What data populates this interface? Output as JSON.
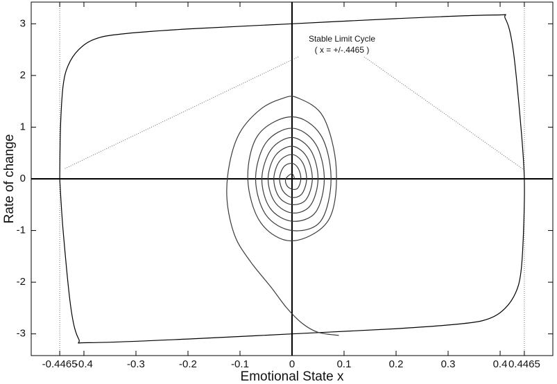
{
  "chart_data": {
    "type": "line",
    "xlabel": "Emotional State x",
    "ylabel": "Rate of change",
    "annotation": [
      "Stable Limit Cycle",
      "( x = +/-.4465 )"
    ],
    "xlim": [
      -0.5013,
      0.5013
    ],
    "ylim": [
      -3.42,
      3.42
    ],
    "xticks": [
      -0.4465,
      -0.4,
      -0.3,
      -0.2,
      -0.1,
      0,
      0.1,
      0.2,
      0.3,
      0.4,
      0.4465
    ],
    "yticks": [
      -3,
      -2,
      -1,
      0,
      1,
      2,
      3
    ],
    "reference_lines_x": [
      -0.4465,
      0.4465
    ],
    "zero_axes": true,
    "series": [
      {
        "color": "#000000",
        "x": [
          -0.4465,
          -0.445,
          -0.44,
          -0.43,
          -0.41,
          -0.38,
          -0.33,
          -0.2,
          0,
          0.2,
          0.39,
          0.41,
          0.425,
          0.44,
          0.4465,
          0.445,
          0.44,
          0.43,
          0.41,
          0.38,
          0.33,
          0.2,
          0,
          -0.2,
          -0.39,
          -0.41,
          -0.425,
          -0.44,
          -0.4465
        ],
        "y": [
          0,
          1.0,
          1.8,
          2.2,
          2.5,
          2.7,
          2.8,
          2.9,
          3.0,
          3.1,
          3.17,
          3.1,
          2.5,
          1.0,
          0,
          -1.0,
          -1.8,
          -2.2,
          -2.5,
          -2.7,
          -2.8,
          -2.9,
          -3.0,
          -3.1,
          -3.17,
          -3.1,
          -2.5,
          -1.0,
          0
        ]
      },
      {
        "color": "#3a3a3a",
        "x": [
          0.09,
          0.05,
          0.02,
          -0.01,
          -0.04,
          -0.08,
          -0.11,
          -0.125,
          -0.12,
          -0.1,
          -0.06,
          -0.02,
          0.01,
          0.06,
          0.085,
          0.07,
          0.0,
          -0.06,
          -0.085,
          -0.065,
          0.0,
          0.055,
          0.075,
          0.055,
          0,
          -0.05,
          -0.07,
          -0.05,
          0,
          0.045,
          0.062,
          0.045,
          0,
          -0.042,
          -0.058,
          -0.04,
          0,
          0.036,
          0.05,
          0.035,
          0,
          -0.033,
          -0.046,
          -0.032,
          0,
          0.028,
          0.039,
          0.027,
          0,
          -0.025,
          -0.035,
          -0.024,
          0,
          0.02,
          0.028,
          0.019,
          0,
          -0.017,
          -0.024,
          -0.016,
          0,
          0.012,
          0.017,
          0.011,
          0,
          -0.01,
          -0.012,
          0,
          0.005
        ],
        "y": [
          -3.03,
          -2.97,
          -2.8,
          -2.5,
          -2.1,
          -1.6,
          -1.1,
          -0.4,
          0.3,
          0.9,
          1.35,
          1.55,
          1.57,
          1.2,
          0.2,
          -0.8,
          -1.2,
          -0.85,
          0,
          0.85,
          1.2,
          0.85,
          0,
          -0.82,
          -1.0,
          -0.7,
          0,
          0.7,
          0.98,
          0.68,
          0,
          -0.65,
          -0.82,
          -0.57,
          0,
          0.57,
          0.8,
          0.55,
          0,
          -0.52,
          -0.66,
          -0.45,
          0,
          0.45,
          0.63,
          0.43,
          0,
          -0.4,
          -0.5,
          -0.35,
          0,
          0.34,
          0.47,
          0.32,
          0,
          -0.29,
          -0.36,
          -0.24,
          0,
          0.23,
          0.3,
          0.2,
          0,
          -0.18,
          -0.2,
          -0.13,
          0,
          0.1,
          0
        ]
      }
    ]
  }
}
